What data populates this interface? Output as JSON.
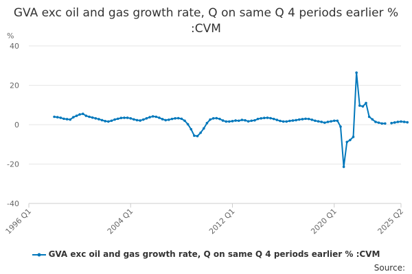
{
  "chart_data": {
    "type": "line",
    "title": "GVA exc oil and gas growth rate, Q on same Q 4 periods earlier % :CVM",
    "ylabel": "%",
    "xlabel": "",
    "ylim": [
      -40,
      40
    ],
    "yticks": [
      -40,
      -20,
      0,
      20,
      40
    ],
    "xlim": [
      "1996 Q1",
      "2025 Q2"
    ],
    "xticks": [
      "1996 Q1",
      "2004 Q1",
      "2012 Q1",
      "2020 Q1",
      "2025 Q2"
    ],
    "grid": true,
    "legend_position": "bottom",
    "series": [
      {
        "name": "GVA exc oil and gas growth rate, Q on same Q 4 periods earlier % :CVM",
        "color": "#0077bb",
        "start": "1998 Q1",
        "values": [
          4.0,
          3.8,
          3.5,
          3.0,
          2.8,
          2.6,
          3.8,
          4.5,
          5.2,
          5.5,
          4.5,
          4.0,
          3.6,
          3.2,
          2.8,
          2.3,
          1.8,
          1.6,
          2.0,
          2.6,
          3.0,
          3.4,
          3.5,
          3.5,
          3.2,
          2.7,
          2.3,
          2.1,
          2.6,
          3.2,
          3.8,
          4.2,
          4.0,
          3.5,
          2.8,
          2.3,
          2.5,
          2.9,
          3.2,
          3.3,
          3.0,
          2.0,
          0.2,
          -2.3,
          -5.6,
          -5.8,
          -4.1,
          -1.9,
          0.8,
          2.6,
          3.2,
          3.3,
          2.9,
          2.1,
          1.6,
          1.6,
          1.8,
          2.1,
          2.0,
          2.4,
          2.2,
          1.7,
          2.0,
          2.2,
          2.9,
          3.2,
          3.4,
          3.5,
          3.3,
          2.9,
          2.4,
          1.9,
          1.6,
          1.6,
          1.9,
          2.1,
          2.3,
          2.6,
          2.8,
          3.0,
          2.9,
          2.5,
          2.0,
          1.7,
          1.4,
          1.0,
          1.4,
          1.7,
          2.0,
          2.0,
          -1.0,
          -21.4,
          -8.8,
          -7.8,
          -6.2,
          26.4,
          9.7,
          9.3,
          11.0,
          4.0,
          2.7,
          1.4,
          1.0,
          0.6,
          0.6,
          null,
          0.8,
          1.1,
          1.4,
          1.6,
          1.4,
          1.2
        ]
      }
    ]
  },
  "source_label": "Source:"
}
